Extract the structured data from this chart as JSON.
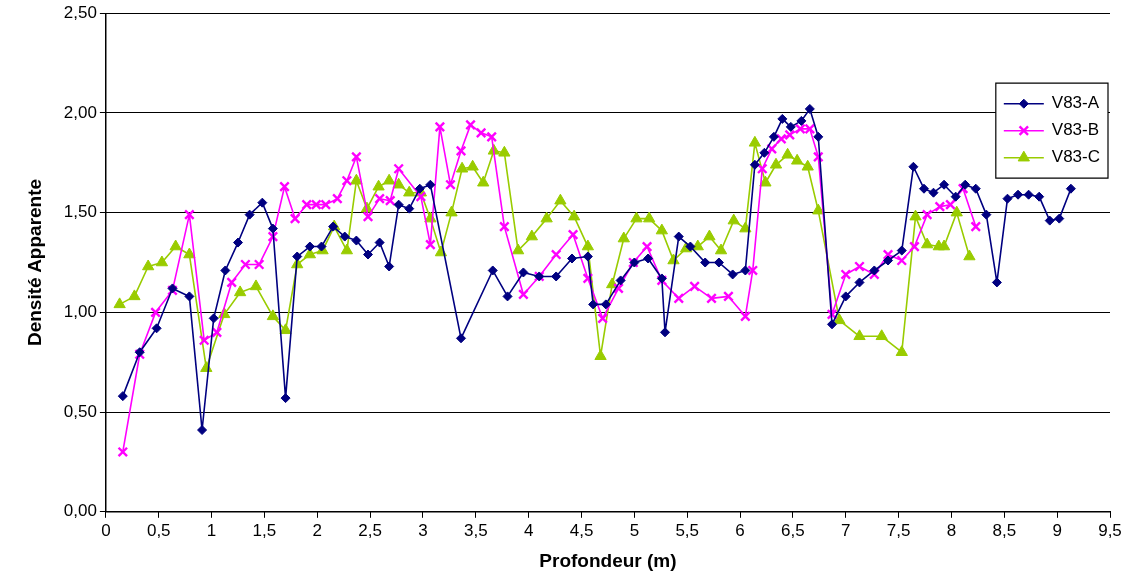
{
  "chart_data": {
    "type": "line",
    "xlabel": "Profondeur (m)",
    "ylabel": "Densité Apparente",
    "xlim": [
      0,
      9.5
    ],
    "xticks": [
      0,
      {
        "value": 0.5,
        "label": "0,5"
      },
      1,
      {
        "value": 1.5,
        "label": "1,5"
      },
      2,
      {
        "value": 2.5,
        "label": "2,5"
      },
      3,
      {
        "value": 3.5,
        "label": "3,5"
      },
      4,
      {
        "value": 4.5,
        "label": "4,5"
      },
      5,
      {
        "value": 5.5,
        "label": "5,5"
      },
      6,
      {
        "value": 6.5,
        "label": "6,5"
      },
      7,
      {
        "value": 7.5,
        "label": "7,5"
      },
      8,
      {
        "value": 8.5,
        "label": "8,5"
      },
      9,
      {
        "value": 9.5,
        "label": "9,5"
      }
    ],
    "ylim": [
      0,
      2.5
    ],
    "yticks": [
      {
        "value": 0,
        "label": "0,00"
      },
      {
        "value": 0.5,
        "label": "0,50"
      },
      {
        "value": 1,
        "label": "1,00"
      },
      {
        "value": 1.5,
        "label": "1,50"
      },
      {
        "value": 2,
        "label": "2,00"
      },
      {
        "value": 2.5,
        "label": "2,50"
      }
    ],
    "grid": "y",
    "legend": "top right",
    "line_style": "solid",
    "series": [
      {
        "name": "V83-A",
        "color": "#000080",
        "marker": "diamond",
        "x": [
          0.16,
          0.32,
          0.48,
          0.63,
          0.79,
          0.91,
          1.02,
          1.13,
          1.25,
          1.36,
          1.48,
          1.58,
          1.7,
          1.81,
          1.93,
          2.04,
          2.15,
          2.26,
          2.37,
          2.48,
          2.59,
          2.68,
          2.77,
          2.87,
          2.97,
          3.07,
          3.36,
          3.66,
          3.8,
          3.95,
          4.1,
          4.26,
          4.41,
          4.56,
          4.61,
          4.73,
          4.87,
          5.0,
          5.13,
          5.26,
          5.29,
          5.42,
          5.53,
          5.67,
          5.8,
          5.93,
          6.05,
          6.14,
          6.23,
          6.32,
          6.4,
          6.48,
          6.58,
          6.66,
          6.74,
          6.87,
          7.0,
          7.13,
          7.27,
          7.4,
          7.53,
          7.64,
          7.74,
          7.83,
          7.93,
          8.04,
          8.13,
          8.23,
          8.33,
          8.43,
          8.53,
          8.63,
          8.73,
          8.83,
          8.93,
          9.02,
          9.13
        ],
        "values": [
          0.58,
          0.8,
          0.92,
          1.12,
          1.08,
          0.41,
          0.97,
          1.21,
          1.35,
          1.49,
          1.55,
          1.42,
          0.57,
          1.28,
          1.33,
          1.33,
          1.43,
          1.38,
          1.36,
          1.29,
          1.35,
          1.23,
          1.54,
          1.52,
          1.62,
          1.64,
          0.87,
          1.21,
          1.08,
          1.2,
          1.18,
          1.18,
          1.27,
          1.28,
          1.04,
          1.04,
          1.16,
          1.25,
          1.27,
          1.17,
          0.9,
          1.38,
          1.33,
          1.25,
          1.25,
          1.19,
          1.21,
          1.74,
          1.8,
          1.88,
          1.97,
          1.93,
          1.96,
          2.02,
          1.88,
          0.94,
          1.08,
          1.15,
          1.21,
          1.26,
          1.31,
          1.73,
          1.62,
          1.6,
          1.64,
          1.58,
          1.64,
          1.62,
          1.49,
          1.15,
          1.57,
          1.59,
          1.59,
          1.58,
          1.46,
          1.47,
          1.62
        ]
      },
      {
        "name": "V83-B",
        "color": "#ff00ff",
        "marker": "cross",
        "x": [
          0.16,
          0.32,
          0.47,
          0.63,
          0.79,
          0.93,
          1.05,
          1.19,
          1.32,
          1.45,
          1.58,
          1.69,
          1.79,
          1.9,
          1.99,
          2.08,
          2.19,
          2.28,
          2.37,
          2.48,
          2.59,
          2.69,
          2.77,
          2.98,
          3.07,
          3.16,
          3.26,
          3.36,
          3.45,
          3.55,
          3.65,
          3.77,
          3.95,
          4.1,
          4.26,
          4.42,
          4.56,
          4.7,
          4.85,
          4.99,
          5.12,
          5.26,
          5.42,
          5.57,
          5.73,
          5.89,
          6.05,
          6.12,
          6.21,
          6.3,
          6.39,
          6.47,
          6.57,
          6.66,
          6.74,
          6.87,
          7.0,
          7.13,
          7.27,
          7.4,
          7.53,
          7.65,
          7.77,
          7.89,
          7.99,
          8.11,
          8.23
        ],
        "values": [
          0.3,
          0.79,
          1.0,
          1.11,
          1.49,
          0.86,
          0.9,
          1.15,
          1.24,
          1.24,
          1.38,
          1.63,
          1.47,
          1.54,
          1.54,
          1.54,
          1.57,
          1.66,
          1.78,
          1.48,
          1.57,
          1.56,
          1.72,
          1.58,
          1.34,
          1.93,
          1.64,
          1.81,
          1.94,
          1.9,
          1.88,
          1.43,
          1.09,
          1.18,
          1.29,
          1.39,
          1.17,
          0.97,
          1.12,
          1.25,
          1.33,
          1.16,
          1.07,
          1.13,
          1.07,
          1.08,
          0.98,
          1.21,
          1.72,
          1.82,
          1.87,
          1.89,
          1.92,
          1.92,
          1.78,
          0.99,
          1.19,
          1.23,
          1.19,
          1.29,
          1.26,
          1.33,
          1.49,
          1.53,
          1.54,
          1.62,
          1.43
        ]
      },
      {
        "name": "V83-C",
        "color": "#99cc00",
        "marker": "triangle",
        "x": [
          0.13,
          0.27,
          0.4,
          0.53,
          0.66,
          0.79,
          0.95,
          1.12,
          1.27,
          1.42,
          1.58,
          1.7,
          1.81,
          1.93,
          2.05,
          2.16,
          2.28,
          2.37,
          2.47,
          2.58,
          2.68,
          2.77,
          2.87,
          2.98,
          3.07,
          3.17,
          3.27,
          3.37,
          3.47,
          3.57,
          3.67,
          3.77,
          3.9,
          4.03,
          4.17,
          4.3,
          4.43,
          4.56,
          4.68,
          4.79,
          4.9,
          5.02,
          5.14,
          5.26,
          5.37,
          5.49,
          5.6,
          5.71,
          5.82,
          5.94,
          6.05,
          6.14,
          6.24,
          6.34,
          6.45,
          6.54,
          6.64,
          6.74,
          6.94,
          7.13,
          7.34,
          7.53,
          7.66,
          7.77,
          7.88,
          7.93,
          8.05,
          8.17
        ],
        "values": [
          1.04,
          1.08,
          1.23,
          1.25,
          1.33,
          1.29,
          0.72,
          0.99,
          1.1,
          1.13,
          0.98,
          0.91,
          1.24,
          1.29,
          1.31,
          1.43,
          1.31,
          1.66,
          1.52,
          1.63,
          1.66,
          1.64,
          1.6,
          1.6,
          1.47,
          1.3,
          1.5,
          1.72,
          1.73,
          1.65,
          1.81,
          1.8,
          1.31,
          1.38,
          1.47,
          1.56,
          1.48,
          1.33,
          0.78,
          1.14,
          1.37,
          1.47,
          1.47,
          1.41,
          1.26,
          1.32,
          1.33,
          1.38,
          1.31,
          1.46,
          1.42,
          1.85,
          1.65,
          1.74,
          1.79,
          1.76,
          1.73,
          1.51,
          0.96,
          0.88,
          0.88,
          0.8,
          1.48,
          1.34,
          1.33,
          1.33,
          1.5,
          1.28
        ]
      }
    ]
  }
}
